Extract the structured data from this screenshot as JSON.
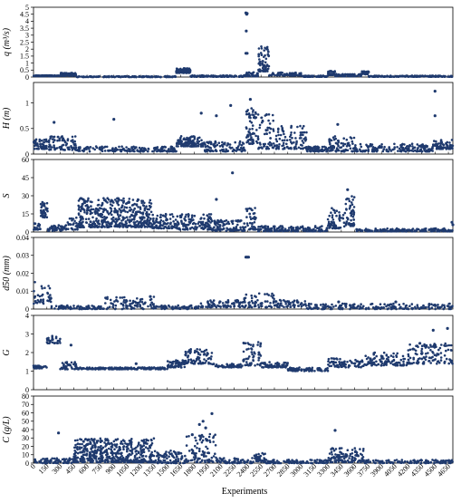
{
  "chart_data": [
    {
      "type": "scatter",
      "ylabel": "q (m³/s)",
      "ylim": [
        0,
        5
      ],
      "yticks": [
        "0",
        "0.5",
        "1",
        "1.5",
        "2",
        "2.5",
        "3",
        "3.5",
        "4",
        "4.5",
        "5"
      ],
      "xlim": [
        0,
        4700
      ],
      "color": "#1f3a6e",
      "segments": [
        {
          "x": [
            0,
            300
          ],
          "y": [
            0.06,
            0.12
          ],
          "n": 90
        },
        {
          "x": [
            300,
            480
          ],
          "y": [
            0.08,
            0.3
          ],
          "n": 70
        },
        {
          "x": [
            480,
            1600
          ],
          "y": [
            0.0,
            0.06
          ],
          "n": 150
        },
        {
          "x": [
            1600,
            1760
          ],
          "y": [
            0.3,
            0.65
          ],
          "n": 120
        },
        {
          "x": [
            1760,
            2380
          ],
          "y": [
            0.02,
            0.12
          ],
          "n": 130
        },
        {
          "x": [
            2380,
            2520
          ],
          "y": [
            0.05,
            0.35
          ],
          "n": 40
        },
        {
          "x": [
            2520,
            2640
          ],
          "y": [
            0.4,
            2.2
          ],
          "n": 70
        },
        {
          "x": [
            2640,
            3000
          ],
          "y": [
            0.1,
            0.35
          ],
          "n": 80
        },
        {
          "x": [
            3000,
            3300
          ],
          "y": [
            0.02,
            0.1
          ],
          "n": 60
        },
        {
          "x": [
            3300,
            3380
          ],
          "y": [
            0.15,
            0.45
          ],
          "n": 30
        },
        {
          "x": [
            3380,
            3680
          ],
          "y": [
            0.05,
            0.22
          ],
          "n": 70
        },
        {
          "x": [
            3680,
            3760
          ],
          "y": [
            0.2,
            0.45
          ],
          "n": 30
        },
        {
          "x": [
            3760,
            4700
          ],
          "y": [
            0.02,
            0.1
          ],
          "n": 150
        }
      ],
      "points": [
        [
          2380,
          4.6
        ],
        [
          2390,
          4.5
        ],
        [
          2395,
          4.55
        ],
        [
          2385,
          3.3
        ],
        [
          2380,
          1.7
        ],
        [
          2395,
          1.7
        ]
      ]
    },
    {
      "type": "scatter",
      "ylabel": "H (m)",
      "ylim": [
        0,
        1.4
      ],
      "yticks": [
        "0",
        "0.5",
        "1"
      ],
      "ytick_values": [
        0,
        0.5,
        1
      ],
      "xlim": [
        0,
        4700
      ],
      "color": "#1f3a6e",
      "segments": [
        {
          "x": [
            0,
            150
          ],
          "y": [
            0.1,
            0.3
          ],
          "n": 50
        },
        {
          "x": [
            150,
            480
          ],
          "y": [
            0.08,
            0.35
          ],
          "n": 80
        },
        {
          "x": [
            480,
            1600
          ],
          "y": [
            0.05,
            0.15
          ],
          "n": 170
        },
        {
          "x": [
            1600,
            1900
          ],
          "y": [
            0.15,
            0.35
          ],
          "n": 100
        },
        {
          "x": [
            1900,
            2380
          ],
          "y": [
            0.05,
            0.25
          ],
          "n": 100
        },
        {
          "x": [
            2380,
            2500
          ],
          "y": [
            0.2,
            0.9
          ],
          "n": 60
        },
        {
          "x": [
            2500,
            2700
          ],
          "y": [
            0.1,
            0.8
          ],
          "n": 60
        },
        {
          "x": [
            2700,
            3060
          ],
          "y": [
            0.1,
            0.55
          ],
          "n": 90
        },
        {
          "x": [
            3060,
            3300
          ],
          "y": [
            0.05,
            0.15
          ],
          "n": 60
        },
        {
          "x": [
            3300,
            3600
          ],
          "y": [
            0.05,
            0.35
          ],
          "n": 80
        },
        {
          "x": [
            3600,
            4480
          ],
          "y": [
            0.05,
            0.2
          ],
          "n": 170
        },
        {
          "x": [
            4480,
            4700
          ],
          "y": [
            0.1,
            0.28
          ],
          "n": 60
        }
      ],
      "points": [
        [
          4500,
          1.23
        ],
        [
          4500,
          0.75
        ],
        [
          2210,
          0.95
        ],
        [
          1880,
          0.8
        ],
        [
          900,
          0.68
        ],
        [
          2050,
          0.75
        ],
        [
          2430,
          1.07
        ],
        [
          230,
          0.62
        ],
        [
          3410,
          0.58
        ]
      ]
    },
    {
      "type": "scatter",
      "ylabel": "S",
      "ylim": [
        0,
        60
      ],
      "yticks": [
        "0",
        "15",
        "30",
        "45",
        "60"
      ],
      "xlim": [
        0,
        4700
      ],
      "color": "#1f3a6e",
      "segments": [
        {
          "x": [
            0,
            80
          ],
          "y": [
            2,
            8
          ],
          "n": 20
        },
        {
          "x": [
            80,
            160
          ],
          "y": [
            12,
            25
          ],
          "n": 40
        },
        {
          "x": [
            160,
            350
          ],
          "y": [
            1,
            6
          ],
          "n": 40
        },
        {
          "x": [
            350,
            500
          ],
          "y": [
            2,
            12
          ],
          "n": 30
        },
        {
          "x": [
            500,
            1330
          ],
          "y": [
            4,
            28
          ],
          "n": 460
        },
        {
          "x": [
            1330,
            1600
          ],
          "y": [
            3,
            15
          ],
          "n": 90
        },
        {
          "x": [
            1600,
            2000
          ],
          "y": [
            2,
            15
          ],
          "n": 120
        },
        {
          "x": [
            2000,
            2380
          ],
          "y": [
            1,
            10
          ],
          "n": 100
        },
        {
          "x": [
            2380,
            2500
          ],
          "y": [
            2,
            20
          ],
          "n": 40
        },
        {
          "x": [
            2500,
            3300
          ],
          "y": [
            0.5,
            5
          ],
          "n": 150
        },
        {
          "x": [
            3300,
            3500
          ],
          "y": [
            3,
            20
          ],
          "n": 60
        },
        {
          "x": [
            3500,
            3600
          ],
          "y": [
            5,
            30
          ],
          "n": 50
        },
        {
          "x": [
            3600,
            4700
          ],
          "y": [
            0.5,
            3
          ],
          "n": 170
        }
      ],
      "points": [
        [
          2230,
          49
        ],
        [
          3520,
          35
        ],
        [
          2050,
          27
        ],
        [
          4690,
          8
        ],
        [
          4700,
          6
        ]
      ]
    },
    {
      "type": "scatter",
      "ylabel": "d50 (mm)",
      "ylim": [
        0,
        0.04
      ],
      "yticks": [
        "0",
        "0.01",
        "0.02",
        "0.03",
        "0.04"
      ],
      "xlim": [
        0,
        4700
      ],
      "color": "#1f3a6e",
      "segments": [
        {
          "x": [
            0,
            200
          ],
          "y": [
            0.003,
            0.016
          ],
          "n": 40
        },
        {
          "x": [
            200,
            800
          ],
          "y": [
            0.0,
            0.002
          ],
          "n": 80
        },
        {
          "x": [
            800,
            1350
          ],
          "y": [
            0.0,
            0.007
          ],
          "n": 90
        },
        {
          "x": [
            1350,
            1850
          ],
          "y": [
            0.0,
            0.002
          ],
          "n": 60
        },
        {
          "x": [
            1850,
            2350
          ],
          "y": [
            0.001,
            0.005
          ],
          "n": 80
        },
        {
          "x": [
            2350,
            2700
          ],
          "y": [
            0.001,
            0.009
          ],
          "n": 60
        },
        {
          "x": [
            2700,
            3050
          ],
          "y": [
            0.001,
            0.005
          ],
          "n": 60
        },
        {
          "x": [
            3050,
            4700
          ],
          "y": [
            0.0,
            0.003
          ],
          "n": 200
        }
      ],
      "points": [
        [
          2380,
          0.029
        ],
        [
          2410,
          0.029
        ],
        [
          2395,
          0.029
        ],
        [
          1310,
          0.007
        ],
        [
          4060,
          0.004
        ],
        [
          3420,
          0.004
        ]
      ]
    },
    {
      "type": "scatter",
      "ylabel": "G",
      "ylim": [
        0,
        4
      ],
      "yticks": [
        "0",
        "1",
        "2",
        "3",
        "4"
      ],
      "xlim": [
        0,
        4700
      ],
      "color": "#1f3a6e",
      "segments": [
        {
          "x": [
            0,
            150
          ],
          "y": [
            1.15,
            1.3
          ],
          "n": 40
        },
        {
          "x": [
            150,
            300
          ],
          "y": [
            2.5,
            2.9
          ],
          "n": 30
        },
        {
          "x": [
            300,
            480
          ],
          "y": [
            1.1,
            1.5
          ],
          "n": 40
        },
        {
          "x": [
            480,
            1500
          ],
          "y": [
            1.1,
            1.2
          ],
          "n": 170
        },
        {
          "x": [
            1500,
            1700
          ],
          "y": [
            1.2,
            1.6
          ],
          "n": 60
        },
        {
          "x": [
            1700,
            2000
          ],
          "y": [
            1.4,
            2.2
          ],
          "n": 80
        },
        {
          "x": [
            2000,
            2350
          ],
          "y": [
            1.2,
            1.4
          ],
          "n": 60
        },
        {
          "x": [
            2350,
            2550
          ],
          "y": [
            1.3,
            2.7
          ],
          "n": 60
        },
        {
          "x": [
            2550,
            2850
          ],
          "y": [
            1.2,
            1.5
          ],
          "n": 60
        },
        {
          "x": [
            2850,
            3300
          ],
          "y": [
            1.0,
            1.2
          ],
          "n": 80
        },
        {
          "x": [
            3300,
            3700
          ],
          "y": [
            1.2,
            1.7
          ],
          "n": 80
        },
        {
          "x": [
            3700,
            4200
          ],
          "y": [
            1.3,
            2.0
          ],
          "n": 100
        },
        {
          "x": [
            4200,
            4700
          ],
          "y": [
            1.4,
            2.5
          ],
          "n": 120
        }
      ],
      "points": [
        [
          4640,
          3.3
        ],
        [
          4480,
          3.2
        ],
        [
          4330,
          2.5
        ],
        [
          420,
          2.4
        ],
        [
          1150,
          1.4
        ]
      ]
    },
    {
      "type": "scatter",
      "ylabel": "C (g/L)",
      "ylim": [
        0,
        80
      ],
      "yticks": [
        "0",
        "10",
        "20",
        "30",
        "40",
        "50",
        "60",
        "70",
        "80"
      ],
      "xlim": [
        0,
        4700
      ],
      "color": "#1f3a6e",
      "segments": [
        {
          "x": [
            0,
            450
          ],
          "y": [
            0,
            6
          ],
          "n": 80
        },
        {
          "x": [
            450,
            1350
          ],
          "y": [
            1,
            30
          ],
          "n": 480
        },
        {
          "x": [
            1350,
            1700
          ],
          "y": [
            0,
            15
          ],
          "n": 90
        },
        {
          "x": [
            1700,
            2050
          ],
          "y": [
            1,
            35
          ],
          "n": 90
        },
        {
          "x": [
            2050,
            2450
          ],
          "y": [
            0,
            6
          ],
          "n": 60
        },
        {
          "x": [
            2450,
            2600
          ],
          "y": [
            1,
            12
          ],
          "n": 40
        },
        {
          "x": [
            2600,
            3300
          ],
          "y": [
            0,
            4
          ],
          "n": 100
        },
        {
          "x": [
            3300,
            3700
          ],
          "y": [
            1,
            18
          ],
          "n": 110
        },
        {
          "x": [
            3700,
            4700
          ],
          "y": [
            0,
            4
          ],
          "n": 120
        }
      ],
      "points": [
        [
          2000,
          59
        ],
        [
          1900,
          50
        ],
        [
          1860,
          46
        ],
        [
          3380,
          39
        ],
        [
          280,
          36
        ],
        [
          1780,
          34
        ],
        [
          1930,
          42
        ]
      ]
    }
  ],
  "xaxis": {
    "label": "Experiments",
    "xlim": [
      0,
      4700
    ],
    "ticks": [
      "0",
      "150",
      "300",
      "450",
      "600",
      "750",
      "900",
      "1050",
      "1200",
      "1350",
      "1500",
      "1650",
      "1800",
      "1950",
      "2100",
      "2250",
      "2400",
      "2550",
      "2700",
      "2850",
      "3000",
      "3150",
      "3300",
      "3450",
      "3600",
      "3750",
      "3900",
      "4050",
      "4200",
      "4350",
      "4500",
      "4650"
    ],
    "tick_values": [
      0,
      150,
      300,
      450,
      600,
      750,
      900,
      1050,
      1200,
      1350,
      1500,
      1650,
      1800,
      1950,
      2100,
      2250,
      2400,
      2550,
      2700,
      2850,
      3000,
      3150,
      3300,
      3450,
      3600,
      3750,
      3900,
      4050,
      4200,
      4350,
      4500,
      4650
    ]
  }
}
